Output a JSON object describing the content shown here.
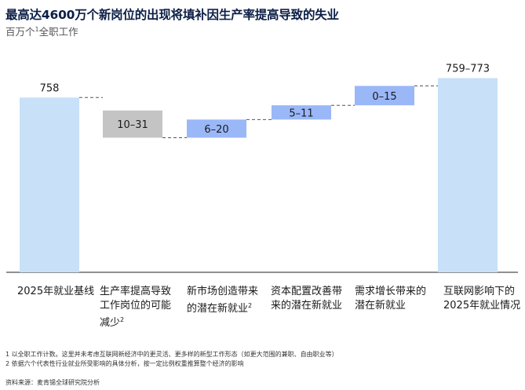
{
  "header": {
    "title": "最高达4600万个新岗位的出现将填补因生产率提高导致的失业",
    "subtitle_main": "百万个",
    "subtitle_sup": "1",
    "subtitle_tail": "全职工作"
  },
  "chart_data": {
    "type": "waterfall",
    "ylim": [
      0,
      800
    ],
    "categories": [
      {
        "label": "2025年就业基线",
        "sup": ""
      },
      {
        "label": "生产率提高导致工作岗位的可能减少",
        "sup": "2"
      },
      {
        "label": "新市场创造带来的潜在新就业",
        "sup": "2"
      },
      {
        "label": "资本配置改善带来的潜在新就业",
        "sup": ""
      },
      {
        "label": "需求增长带来的潜在新就业",
        "sup": ""
      },
      {
        "label": "互联网影响下的2025年就业情况",
        "sup": ""
      }
    ],
    "bars": [
      {
        "kind": "total",
        "low": 0,
        "high": 758,
        "value_label": "758",
        "color": "#c8e0f8"
      },
      {
        "kind": "decrease",
        "low": 727,
        "high": 748,
        "value_label": "10–31",
        "color": "#c4c4c4"
      },
      {
        "kind": "increase",
        "low": 727,
        "high": 741,
        "value_label": "6–20",
        "color": "#9ab7f8"
      },
      {
        "kind": "increase",
        "low": 741,
        "high": 752,
        "value_label": "5–11",
        "color": "#9ab7f8"
      },
      {
        "kind": "increase",
        "low": 752,
        "high": 767,
        "value_label": "0–15",
        "color": "#9ab7f8"
      },
      {
        "kind": "total",
        "low": 0,
        "high": 773,
        "value_label": "759–773",
        "color": "#c8e0f8"
      }
    ]
  },
  "footnotes": [
    "1 以全职工作计数。这里并未考虑互联网新经济中的更灵活、更多样的新型工作形态（如更大范围的兼职、自由职业等）",
    "2 依据六个代表性行业就业所受影响的具体分析，按一定比例权重推算整个经济的影响"
  ],
  "source": "资料来源：麦肯锡全球研究院分析"
}
